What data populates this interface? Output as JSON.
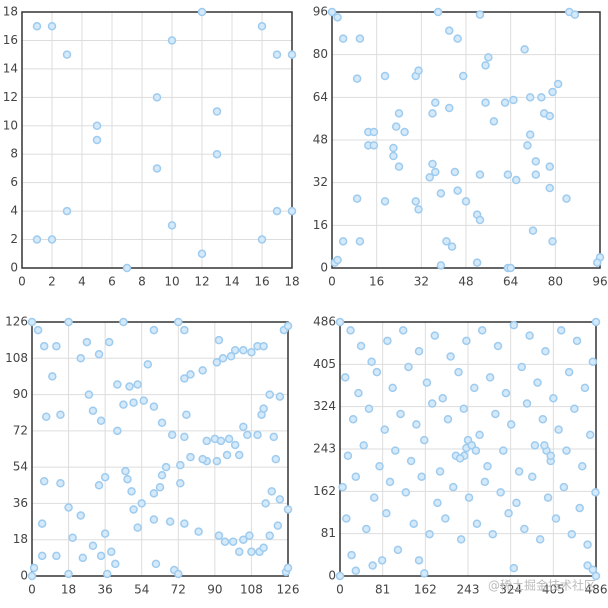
{
  "chart_data": [
    {
      "type": "scatter",
      "color": "#d4e9fa",
      "stroke": "#9ecbee",
      "grid": true,
      "x": [
        1,
        2,
        3,
        12,
        10,
        16,
        17,
        18,
        9,
        13,
        5,
        5,
        13,
        9,
        3,
        17,
        18,
        10,
        1,
        2,
        16,
        12,
        7
      ],
      "y": [
        17,
        17,
        15,
        18,
        16,
        17,
        15,
        15,
        12,
        11,
        10,
        9,
        8,
        7,
        4,
        4,
        4,
        3,
        2,
        2,
        2,
        1,
        0
      ],
      "xlim": [
        0,
        18
      ],
      "ylim": [
        0,
        18
      ],
      "xticks": [
        0,
        2,
        4,
        6,
        8,
        10,
        12,
        14,
        16,
        18
      ],
      "yticks": [
        0,
        2,
        4,
        6,
        8,
        10,
        12,
        14,
        16,
        18
      ]
    },
    {
      "type": "scatter",
      "color": "#d4e9fa",
      "stroke": "#9ecbee",
      "grid": true,
      "x": [
        0,
        2,
        4,
        10,
        38,
        53,
        42,
        45,
        69,
        56,
        55,
        85,
        87,
        9,
        19,
        30,
        31,
        47,
        81,
        62,
        65,
        75,
        58,
        55,
        37,
        36,
        42,
        13,
        15,
        13,
        15,
        24,
        23,
        26,
        22,
        22,
        24,
        36,
        37,
        44,
        45,
        53,
        71,
        76,
        79,
        78,
        71,
        70,
        73,
        78,
        73,
        78,
        63,
        66,
        48,
        52,
        53,
        19,
        30,
        31,
        9,
        84,
        72,
        79,
        4,
        10,
        41,
        43,
        39,
        52,
        63,
        64,
        96,
        95,
        1,
        2,
        35,
        39
      ],
      "y": [
        96,
        94,
        86,
        86,
        96,
        95,
        89,
        86,
        82,
        79,
        76,
        96,
        95,
        71,
        72,
        72,
        74,
        72,
        69,
        62,
        63,
        64,
        55,
        62,
        62,
        58,
        60,
        51,
        51,
        46,
        46,
        58,
        53,
        51,
        45,
        42,
        38,
        39,
        36,
        36,
        29,
        35,
        64,
        58,
        66,
        57,
        50,
        46,
        40,
        38,
        35,
        30,
        35,
        33,
        25,
        20,
        18,
        25,
        25,
        22,
        26,
        26,
        14,
        10,
        10,
        10,
        10,
        8,
        1,
        2,
        0,
        0,
        4,
        2,
        2,
        3,
        34,
        28
      ],
      "xlim": [
        0,
        96
      ],
      "ylim": [
        0,
        96
      ],
      "xticks": [
        0,
        16,
        32,
        48,
        64,
        80,
        96
      ],
      "yticks": [
        0,
        16,
        32,
        48,
        64,
        80,
        96
      ]
    },
    {
      "type": "scatter",
      "color": "#d4e9fa",
      "stroke": "#9ecbee",
      "grid": true,
      "x": [
        0,
        3,
        6,
        12,
        18,
        27,
        33,
        45,
        38,
        60,
        72,
        75,
        92,
        100,
        98,
        104,
        108,
        111,
        114,
        124,
        126,
        10,
        24,
        57,
        42,
        48,
        52,
        75,
        78,
        84,
        91,
        94,
        28,
        50,
        45,
        55,
        60,
        30,
        34,
        7,
        14,
        42,
        64,
        69,
        76,
        90,
        93,
        97,
        86,
        100,
        106,
        104,
        111,
        113,
        114,
        117,
        122,
        119,
        120,
        102,
        96,
        91,
        86,
        84,
        73,
        78,
        75,
        64,
        66,
        46,
        47,
        36,
        33,
        6,
        14,
        49,
        54,
        60,
        63,
        73,
        50,
        18,
        24,
        5,
        20,
        36,
        68,
        75,
        82,
        92,
        95,
        99,
        102,
        104,
        107,
        108,
        112,
        114,
        117,
        121,
        126,
        122,
        115,
        118,
        34,
        30,
        39,
        41,
        25,
        5,
        12,
        61,
        70,
        72,
        18,
        37,
        0,
        1,
        125,
        126,
        52,
        60
      ],
      "y": [
        126,
        122,
        114,
        114,
        126,
        116,
        110,
        126,
        116,
        122,
        126,
        122,
        117,
        112,
        109,
        112,
        111,
        114,
        114,
        122,
        124,
        99,
        108,
        105,
        95,
        94,
        95,
        98,
        100,
        102,
        106,
        108,
        90,
        86,
        85,
        87,
        84,
        82,
        77,
        79,
        80,
        72,
        76,
        70,
        80,
        68,
        67,
        68,
        67,
        65,
        70,
        74,
        70,
        80,
        83,
        90,
        89,
        69,
        58,
        60,
        60,
        57,
        57,
        58,
        55,
        59,
        69,
        50,
        54,
        52,
        48,
        49,
        45,
        47,
        46,
        42,
        36,
        41,
        44,
        46,
        33,
        34,
        30,
        26,
        19,
        21,
        27,
        26,
        22,
        20,
        17,
        17,
        12,
        18,
        20,
        12,
        12,
        14,
        20,
        25,
        33,
        38,
        36,
        42,
        10,
        15,
        12,
        6,
        9,
        10,
        10,
        6,
        3,
        1,
        1,
        1,
        0,
        4,
        2,
        4,
        24,
        28
      ],
      "xlim": [
        0,
        126
      ],
      "ylim": [
        0,
        126
      ],
      "xticks": [
        0,
        18,
        36,
        54,
        72,
        90,
        108,
        126
      ],
      "yticks": [
        0,
        18,
        36,
        54,
        72,
        90,
        108,
        126
      ]
    },
    {
      "type": "scatter",
      "color": "#d4e9fa",
      "stroke": "#9ecbee",
      "grid": true,
      "x": [
        0,
        486,
        0,
        486,
        20,
        40,
        60,
        90,
        120,
        150,
        180,
        210,
        240,
        270,
        300,
        330,
        360,
        390,
        420,
        450,
        10,
        35,
        70,
        100,
        130,
        165,
        195,
        225,
        255,
        285,
        315,
        345,
        375,
        405,
        435,
        465,
        480,
        25,
        55,
        85,
        115,
        145,
        175,
        205,
        235,
        265,
        295,
        325,
        355,
        385,
        415,
        445,
        475,
        15,
        45,
        75,
        105,
        135,
        160,
        190,
        220,
        250,
        280,
        310,
        340,
        370,
        400,
        430,
        460,
        5,
        30,
        65,
        95,
        125,
        155,
        185,
        215,
        245,
        275,
        305,
        335,
        365,
        395,
        425,
        455,
        485,
        12,
        50,
        88,
        140,
        170,
        200,
        230,
        260,
        290,
        320,
        350,
        380,
        410,
        440,
        470,
        22,
        62,
        110,
        150,
        240,
        243,
        236,
        250,
        228,
        258,
        392,
        400,
        388,
        30,
        470,
        160,
        330,
        80,
        480
      ],
      "y": [
        486,
        486,
        0,
        0,
        470,
        440,
        410,
        450,
        470,
        430,
        460,
        420,
        450,
        470,
        440,
        480,
        460,
        430,
        470,
        450,
        380,
        350,
        390,
        360,
        400,
        370,
        340,
        390,
        360,
        380,
        350,
        400,
        370,
        340,
        390,
        360,
        410,
        300,
        320,
        280,
        310,
        290,
        330,
        300,
        320,
        270,
        310,
        290,
        330,
        300,
        280,
        320,
        270,
        230,
        250,
        210,
        240,
        220,
        260,
        200,
        230,
        250,
        210,
        240,
        200,
        250,
        220,
        240,
        210,
        170,
        190,
        150,
        180,
        160,
        190,
        140,
        170,
        150,
        180,
        160,
        140,
        190,
        150,
        170,
        130,
        160,
        110,
        90,
        120,
        100,
        80,
        110,
        70,
        100,
        80,
        120,
        90,
        70,
        110,
        80,
        60,
        40,
        20,
        50,
        30,
        245,
        260,
        230,
        250,
        225,
        240,
        240,
        230,
        250,
        10,
        20,
        5,
        15,
        30,
        12
      ],
      "xlim": [
        0,
        486
      ],
      "ylim": [
        0,
        486
      ],
      "xticks": [
        0,
        81,
        162,
        243,
        324,
        405,
        486
      ],
      "yticks": [
        0,
        81,
        162,
        243,
        324,
        405,
        486
      ]
    }
  ],
  "watermark": "@稀土掘金技术社区"
}
